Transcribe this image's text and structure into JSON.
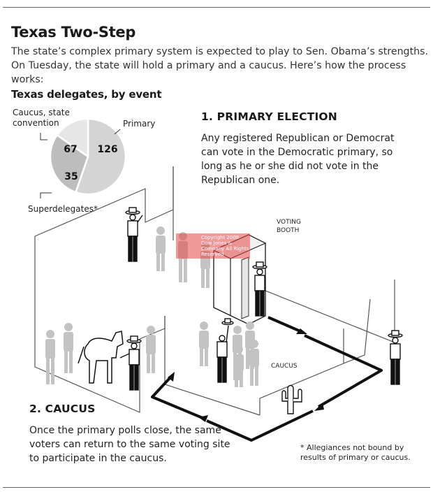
{
  "header": {
    "title": "Texas Two-Step",
    "subtitle": "The state’s complex primary system is expected to play to Sen. Obama’s strengths. On Tuesday, the state will hold a primary and a caucus. Here’s how the process works:"
  },
  "delegates": {
    "heading": "Texas delegates, by event",
    "caucus_label": "Caucus, state convention",
    "primary_label": "Primary",
    "super_label": "Superdelegates*",
    "caucus_value": "67",
    "primary_value": "126",
    "super_value": "35"
  },
  "chart_data": {
    "type": "pie",
    "title": "Texas delegates, by event",
    "slices": [
      {
        "label": "Primary",
        "value": 126
      },
      {
        "label": "Caucus, state convention",
        "value": 67
      },
      {
        "label": "Superdelegates*",
        "value": 35
      }
    ]
  },
  "primary": {
    "heading": "1. PRIMARY ELECTION",
    "text": "Any registered Republican or Democrat can vote in the Democratic primary, so long as he or she did not vote in the Republican one."
  },
  "caucus": {
    "heading": "2. CAUCUS",
    "text": "Once the primary polls close, the same voters can return to the same voting site to participate in the caucus."
  },
  "scene": {
    "booth_label_1": "VOTING",
    "booth_label_2": "BOOTH",
    "caucus_label": "CAUCUS"
  },
  "footnote": "* Allegiances not bound by results of primary or caucus.",
  "watermark": "Copyright 2008 Dow Jones & Company All Rights Reserved",
  "colors": {
    "slice_primary": "#d4d4d4",
    "slice_caucus": "#bdbdbd",
    "slice_super": "#e6e6e6",
    "figure_gray": "#c3c3c3",
    "path": "#111111"
  }
}
